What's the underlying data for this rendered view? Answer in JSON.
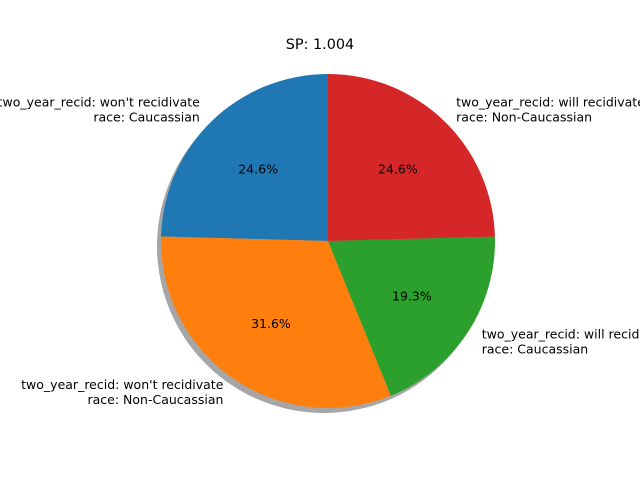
{
  "chart_data": {
    "type": "pie",
    "title": "SP: 1.004",
    "start_angle_deg": 90,
    "direction": "counterclockwise",
    "shadow": true,
    "slices": [
      {
        "label_lines": [
          "two_year_recid: won't recidivate",
          "race: Caucassian"
        ],
        "value": 24.6,
        "pct_label": "24.6%",
        "color": "#1f77b4"
      },
      {
        "label_lines": [
          "two_year_recid: won't recidivate",
          "race: Non-Caucassian"
        ],
        "value": 31.6,
        "pct_label": "31.6%",
        "color": "#ff7f0e"
      },
      {
        "label_lines": [
          "two_year_recid: will recidivate",
          "race: Caucassian"
        ],
        "value": 19.3,
        "pct_label": "19.3%",
        "color": "#2ca02c"
      },
      {
        "label_lines": [
          "two_year_recid: will recidivate",
          "race: Non-Caucassian"
        ],
        "value": 24.6,
        "pct_label": "24.6%",
        "color": "#d62728"
      }
    ]
  }
}
